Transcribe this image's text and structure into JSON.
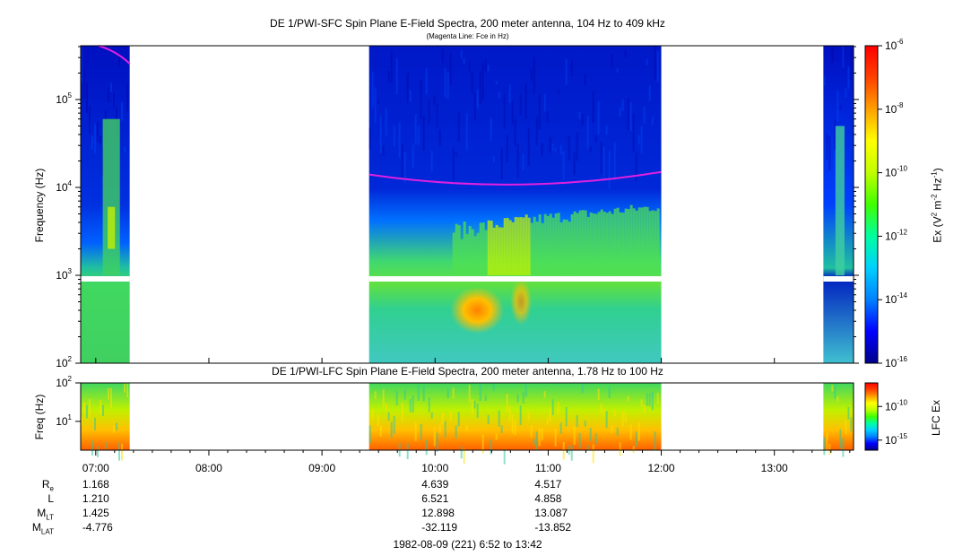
{
  "titles": {
    "main": "DE 1/PWI-SFC  Spin Plane E-Field Spectra, 200 meter antenna, 104 Hz to 409 kHz",
    "subtitle": "(Magenta Line: Fce in Hz)",
    "lfc": "DE 1/PWI-LFC  Spin Plane E-Field Spectra, 200 meter antenna, 1.78 Hz to 100 Hz",
    "date_range": "1982-08-09 (221) 6:52 to 13:42"
  },
  "axes": {
    "upper_ylabel": "Frequency (Hz)",
    "lower_ylabel": "Freq (Hz)",
    "upper_colorbar_label_base": "Ex (V",
    "lower_colorbar_label": "LFC Ex"
  },
  "colors": {
    "fce_line": "#e020e0",
    "gap_fill": "#ffffff",
    "colormap": [
      "#00008b",
      "#0000ff",
      "#0080ff",
      "#00d0ff",
      "#00ffa0",
      "#40ff00",
      "#c0ff00",
      "#ffff00",
      "#ffa000",
      "#ff4000",
      "#ff0000"
    ]
  },
  "ephemeris": {
    "labels": [
      {
        "base": "R",
        "sub": "e"
      },
      {
        "base": "L",
        "sub": ""
      },
      {
        "base": "M",
        "sub": "LT"
      },
      {
        "base": "M",
        "sub": "LAT"
      }
    ],
    "columns": [
      {
        "time": "07:00",
        "values": [
          "1.168",
          "1.210",
          "1.425",
          "-4.776"
        ]
      },
      {
        "time": "10:00",
        "values": [
          "4.639",
          "6.521",
          "12.898",
          "-32.119"
        ]
      },
      {
        "time": "11:00",
        "values": [
          "4.517",
          "4.858",
          "13.087",
          "-13.852"
        ]
      }
    ]
  },
  "chart_data": [
    {
      "type": "heatmap",
      "title": "DE 1/PWI-SFC  Spin Plane E-Field Spectra, 200 meter antenna, 104 Hz to 409 kHz",
      "xlabel": "",
      "ylabel": "Frequency (Hz)",
      "x_range": [
        "06:52",
        "13:42"
      ],
      "x_ticks": [
        "07:00",
        "08:00",
        "09:00",
        "10:00",
        "11:00",
        "12:00",
        "13:00"
      ],
      "y_scale": "log",
      "ylim": [
        100,
        409000
      ],
      "y_ticks": [
        "10^2",
        "10^3",
        "10^4",
        "10^5"
      ],
      "data_intervals": [
        [
          "06:52",
          "07:18"
        ],
        [
          "09:25",
          "12:00"
        ],
        [
          "13:26",
          "13:42"
        ]
      ],
      "colorbar": {
        "scale": "log",
        "range": [
          1e-16,
          1e-06
        ],
        "ticks": [
          "10^-6",
          "10^-8",
          "10^-10",
          "10^-12",
          "10^-14",
          "10^-16"
        ]
      },
      "overlay_line": {
        "label": "Fce in Hz",
        "color": "#e020e0"
      }
    },
    {
      "type": "heatmap",
      "title": "DE 1/PWI-LFC  Spin Plane E-Field Spectra, 200 meter antenna, 1.78 Hz to 100 Hz",
      "ylabel": "Freq (Hz)",
      "y_scale": "log",
      "ylim": [
        1.78,
        100
      ],
      "y_ticks": [
        "10^1",
        "10^2"
      ],
      "data_intervals": [
        [
          "06:52",
          "07:18"
        ],
        [
          "09:25",
          "12:00"
        ],
        [
          "13:26",
          "13:42"
        ]
      ],
      "colorbar": {
        "label": "LFC Ex",
        "scale": "log",
        "ticks": [
          "10^-10",
          "10^-15"
        ]
      }
    }
  ]
}
